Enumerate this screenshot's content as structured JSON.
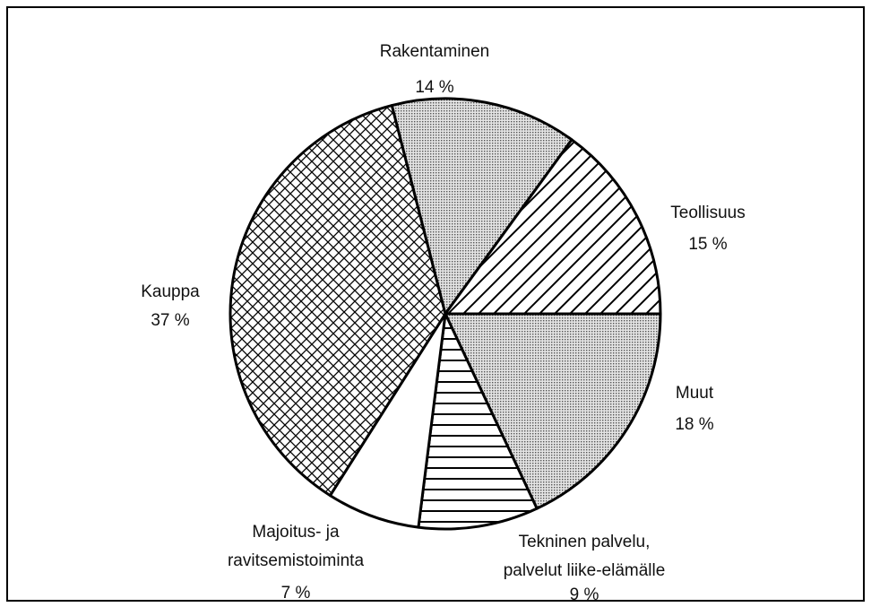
{
  "chart_data": {
    "type": "pie",
    "categories": [
      "Muut",
      "Tekninen palvelu,\npalvelut liike-elämälle",
      "Majoitus- ja\nravitsemistoiminta",
      "Kauppa",
      "Rakentaminen",
      "Teollisuus"
    ],
    "values": [
      18,
      9,
      7,
      37,
      14,
      15
    ],
    "value_labels": [
      "18 %",
      "9 %",
      "7 %",
      "37 %",
      "14 %",
      "15 %"
    ],
    "patterns": [
      "dots",
      "horizontal",
      "none",
      "crosshatch",
      "dots",
      "diagonal"
    ]
  }
}
